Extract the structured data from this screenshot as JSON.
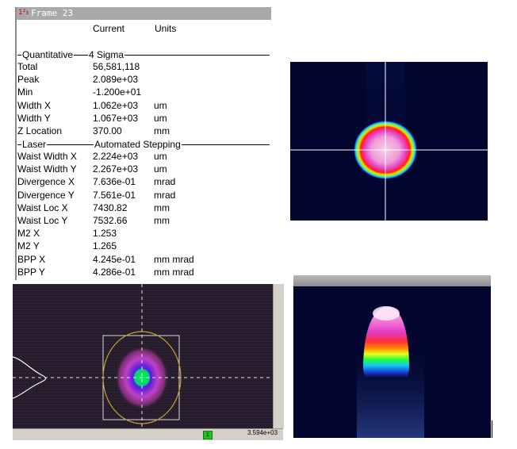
{
  "window": {
    "icon": "1²₃",
    "title": "Frame 23"
  },
  "table_header": {
    "current": "Current",
    "units": "Units"
  },
  "sections": {
    "quantitative": {
      "left": "Quantitative",
      "right": "4 Sigma"
    },
    "laser": {
      "left": "Laser",
      "right": "Automated Stepping"
    }
  },
  "quantitative_rows": [
    {
      "name": "Total",
      "value": "56,581,118",
      "unit": ""
    },
    {
      "name": "Peak",
      "value": "2.089e+03",
      "unit": ""
    },
    {
      "name": "Min",
      "value": "-1.200e+01",
      "unit": ""
    },
    {
      "name": "Width X",
      "value": "1.062e+03",
      "unit": "um"
    },
    {
      "name": "Width Y",
      "value": "1.067e+03",
      "unit": "um"
    },
    {
      "name": "Z Location",
      "value": "370.00",
      "unit": "mm"
    }
  ],
  "laser_rows": [
    {
      "name": "Waist Width X",
      "value": "2.224e+03",
      "unit": "um"
    },
    {
      "name": "Waist Width Y",
      "value": "2.267e+03",
      "unit": "um"
    },
    {
      "name": "Divergence X",
      "value": "7.636e-01",
      "unit": "mrad"
    },
    {
      "name": "Divergence Y",
      "value": "7.561e-01",
      "unit": "mrad"
    },
    {
      "name": "Waist Loc X",
      "value": "7430.82",
      "unit": "mm"
    },
    {
      "name": "Waist Loc Y",
      "value": "7532.66",
      "unit": "mm"
    },
    {
      "name": "M2 X",
      "value": "1.253",
      "unit": ""
    },
    {
      "name": "M2 Y",
      "value": "1.265",
      "unit": ""
    },
    {
      "name": "BPP X",
      "value": "4.245e-01",
      "unit": "mm mrad"
    },
    {
      "name": "BPP Y",
      "value": "4.286e-01",
      "unit": "mm mrad"
    }
  ],
  "statusbar": {
    "indicator": "1",
    "readout": "3.594e+03"
  },
  "icons": [
    "app-icon",
    "crosshair-icon"
  ],
  "colors": {
    "titlebar": "#a9a9a9",
    "panel_background": "#02062f",
    "crosshair": "#ffffff",
    "status_green": "#21c321"
  }
}
